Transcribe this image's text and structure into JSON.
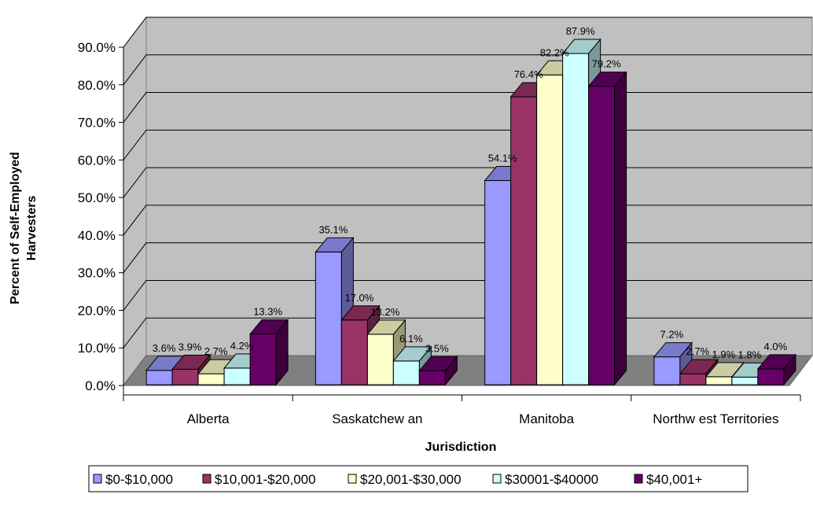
{
  "chart_data": {
    "type": "bar",
    "ylabel_lines": [
      "Percent of Self-Employed",
      "Harvesters"
    ],
    "xlabel": "Jurisdiction",
    "categories": [
      "Alberta",
      "Saskatchew an",
      "Manitoba",
      "Northw est Territories"
    ],
    "ylim": [
      0,
      90
    ],
    "y_ticks": [
      "0.0%",
      "10.0%",
      "20.0%",
      "30.0%",
      "40.0%",
      "50.0%",
      "60.0%",
      "70.0%",
      "80.0%",
      "90.0%"
    ],
    "grid": true,
    "legend_position": "bottom",
    "series": [
      {
        "name": "$0-$10,000",
        "color": "#9999ff",
        "values": [
          3.6,
          35.1,
          54.1,
          7.2
        ],
        "labels": [
          "3.6%",
          "35.1%",
          "54.1%",
          "7.2%"
        ]
      },
      {
        "name": "$10,001-$20,000",
        "color": "#993366",
        "values": [
          3.9,
          17.0,
          76.4,
          2.7
        ],
        "labels": [
          "3.9%",
          "17.0%",
          "76.4%",
          "2.7%"
        ]
      },
      {
        "name": "$20,001-$30,000",
        "color": "#ffffcc",
        "values": [
          2.7,
          13.2,
          82.2,
          1.9
        ],
        "labels": [
          "2.7%",
          "13.2%",
          "82.2%",
          "1.9%"
        ]
      },
      {
        "name": "$30001-$40000",
        "color": "#ccffff",
        "values": [
          4.2,
          6.1,
          87.9,
          1.8
        ],
        "labels": [
          "4.2%",
          "6.1%",
          "87.9%",
          "1.8%"
        ]
      },
      {
        "name": "$40,001+",
        "color": "#660066",
        "values": [
          13.3,
          3.5,
          79.2,
          4.0
        ],
        "labels": [
          "13.3%",
          "3.5%",
          "79.2%",
          "4.0%"
        ]
      }
    ]
  }
}
